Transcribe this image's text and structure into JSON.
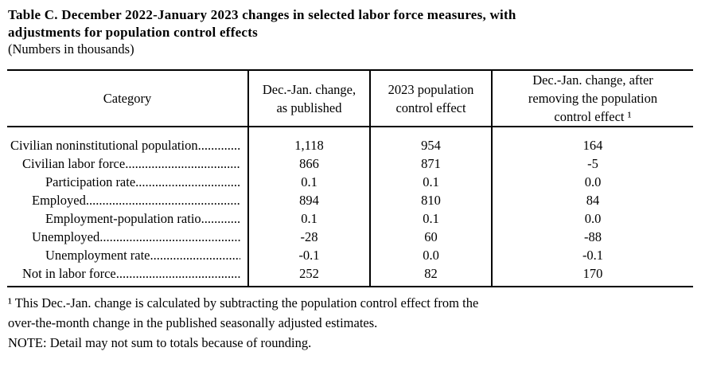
{
  "title": {
    "line1": "Table C. December 2022-January 2023 changes in selected labor force measures, with",
    "line2": "adjustments for population control effects",
    "subtitle": "(Numbers in thousands)"
  },
  "table": {
    "leader_dots": "........................................................................................................................",
    "header": {
      "category": "Category",
      "col2": [
        "Dec.-Jan. change,",
        "as published"
      ],
      "col3": [
        "2023 population",
        "control effect"
      ],
      "col4": [
        "Dec.-Jan. change, after",
        "removing the population",
        "control effect ¹"
      ]
    },
    "rows": [
      {
        "category": "Civilian noninstitutional population",
        "values": [
          "1,118",
          "954",
          "164"
        ]
      },
      {
        "category": "Civilian labor force",
        "values": [
          "866",
          "871",
          "-5"
        ]
      },
      {
        "category": "Participation rate",
        "values": [
          "0.1",
          "0.1",
          "0.0"
        ]
      },
      {
        "category": "Employed",
        "values": [
          "894",
          "810",
          "84"
        ]
      },
      {
        "category": "Employment-population ratio",
        "values": [
          "0.1",
          "0.1",
          "0.0"
        ]
      },
      {
        "category": "Unemployed",
        "values": [
          "-28",
          "60",
          "-88"
        ]
      },
      {
        "category": "Unemployment rate",
        "values": [
          "-0.1",
          "0.0",
          "-0.1"
        ]
      },
      {
        "category": "Not in labor force",
        "values": [
          "252",
          "82",
          "170"
        ]
      }
    ]
  },
  "footnotes": {
    "line1": "¹ This Dec.-Jan. change is calculated by subtracting the population control effect from the",
    "line2": "over-the-month change in the published seasonally adjusted estimates.",
    "note": "NOTE: Detail may not sum to totals because of rounding."
  }
}
